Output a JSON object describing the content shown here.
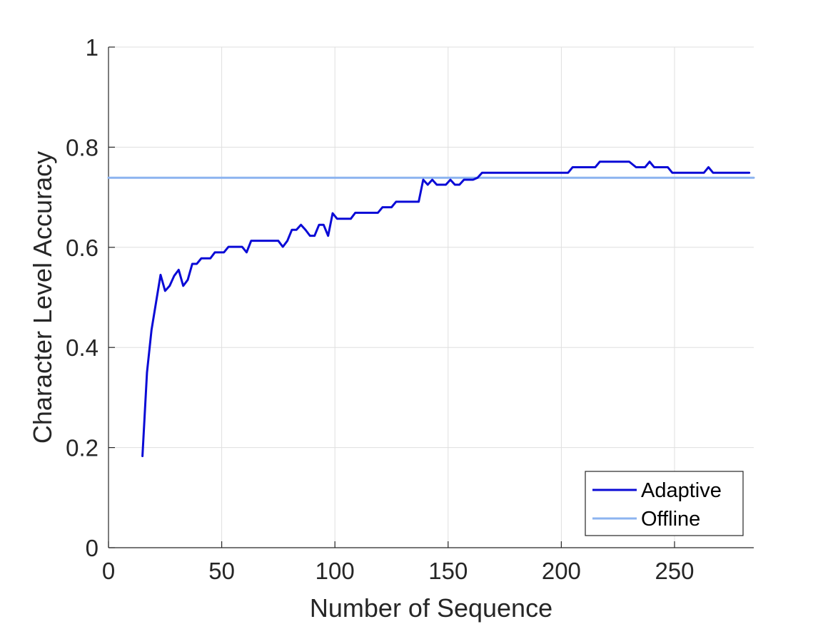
{
  "chart_data": {
    "type": "line",
    "xlabel": "Number of Sequence",
    "ylabel": "Character Level Accuracy",
    "xlim": [
      0,
      285
    ],
    "ylim": [
      0,
      1
    ],
    "xticks": [
      0,
      50,
      100,
      150,
      200,
      250
    ],
    "yticks": [
      0,
      0.2,
      0.4,
      0.6,
      0.8,
      1
    ],
    "xtick_labels": [
      "0",
      "50",
      "100",
      "150",
      "200",
      "250"
    ],
    "ytick_labels": [
      "0",
      "0.2",
      "0.4",
      "0.6",
      "0.8",
      "1"
    ],
    "grid": true,
    "legend_position": "bottom-right",
    "series": [
      {
        "name": "Adaptive",
        "color": "#0a0ad6",
        "x": [
          15,
          17,
          19,
          21,
          23,
          25,
          27,
          29,
          31,
          33,
          35,
          37,
          39,
          41,
          43,
          45,
          47,
          49,
          51,
          53,
          55,
          57,
          59,
          61,
          63,
          65,
          67,
          69,
          71,
          73,
          75,
          77,
          79,
          81,
          83,
          85,
          87,
          89,
          91,
          93,
          95,
          97,
          99,
          101,
          103,
          105,
          107,
          109,
          111,
          113,
          115,
          117,
          119,
          121,
          123,
          125,
          127,
          129,
          131,
          133,
          135,
          137,
          139,
          141,
          143,
          145,
          147,
          149,
          151,
          153,
          155,
          157,
          159,
          161,
          163,
          165,
          170,
          180,
          190,
          200,
          203,
          205,
          210,
          215,
          217,
          220,
          225,
          230,
          233,
          235,
          237,
          239,
          241,
          243,
          245,
          247,
          249,
          251,
          255,
          260,
          263,
          265,
          267,
          270,
          275,
          280,
          283
        ],
        "y": [
          0.183,
          0.35,
          0.435,
          0.49,
          0.545,
          0.513,
          0.523,
          0.543,
          0.555,
          0.523,
          0.535,
          0.567,
          0.567,
          0.578,
          0.578,
          0.578,
          0.59,
          0.59,
          0.59,
          0.601,
          0.601,
          0.601,
          0.601,
          0.59,
          0.613,
          0.613,
          0.613,
          0.613,
          0.613,
          0.613,
          0.613,
          0.601,
          0.613,
          0.635,
          0.635,
          0.645,
          0.635,
          0.623,
          0.623,
          0.645,
          0.645,
          0.623,
          0.668,
          0.657,
          0.657,
          0.657,
          0.657,
          0.669,
          0.669,
          0.669,
          0.669,
          0.669,
          0.669,
          0.68,
          0.68,
          0.68,
          0.691,
          0.691,
          0.691,
          0.691,
          0.691,
          0.691,
          0.735,
          0.725,
          0.735,
          0.725,
          0.725,
          0.725,
          0.735,
          0.725,
          0.725,
          0.735,
          0.735,
          0.735,
          0.739,
          0.749,
          0.749,
          0.749,
          0.749,
          0.749,
          0.749,
          0.76,
          0.76,
          0.76,
          0.771,
          0.771,
          0.771,
          0.771,
          0.76,
          0.76,
          0.76,
          0.771,
          0.76,
          0.76,
          0.76,
          0.76,
          0.749,
          0.749,
          0.749,
          0.749,
          0.749,
          0.76,
          0.749,
          0.749,
          0.749,
          0.749,
          0.749
        ]
      },
      {
        "name": "Offline",
        "color": "#8cb4f0",
        "x": [
          0,
          285
        ],
        "y": [
          0.739,
          0.739
        ]
      }
    ]
  }
}
